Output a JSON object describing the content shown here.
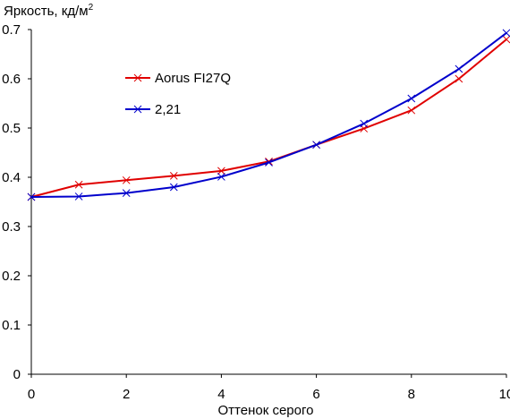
{
  "chart_data": {
    "type": "line",
    "title": "",
    "ylabel": "Яркость, кд/м",
    "ylabel_sup": "2",
    "xlabel": "Оттенок серого",
    "xlim": [
      0,
      10
    ],
    "ylim": [
      0,
      0.7
    ],
    "xticks": [
      0,
      2,
      4,
      6,
      8,
      10
    ],
    "xtick_labels": [
      "0",
      "2",
      "4",
      "6",
      "8",
      "10"
    ],
    "yticks": [
      0,
      0.1,
      0.2,
      0.3,
      0.4,
      0.5,
      0.6,
      0.7
    ],
    "ytick_labels": [
      "0",
      "0.1",
      "0.2",
      "0.3",
      "0.4",
      "0.5",
      "0.6",
      "0.7"
    ],
    "grid": false,
    "legend_position": "upper-left",
    "x": [
      0,
      1,
      2,
      3,
      4,
      5,
      6,
      7,
      8,
      9,
      10
    ],
    "series": [
      {
        "name": "Aorus FI27Q",
        "color": "#e00000",
        "marker": "x",
        "values": [
          0.36,
          0.385,
          0.394,
          0.403,
          0.413,
          0.432,
          0.466,
          0.499,
          0.536,
          0.6,
          0.68
        ]
      },
      {
        "name": "2,21",
        "color": "#0000cc",
        "marker": "x",
        "values": [
          0.36,
          0.361,
          0.368,
          0.38,
          0.401,
          0.43,
          0.466,
          0.509,
          0.56,
          0.62,
          0.693
        ]
      }
    ]
  }
}
